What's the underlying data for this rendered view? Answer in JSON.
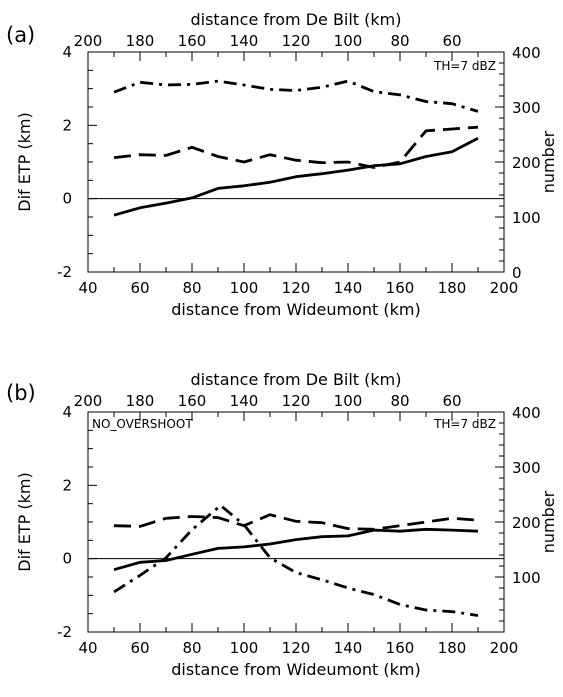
{
  "chart_data": [
    {
      "type": "line",
      "panel_label": "(a)",
      "annotations": [
        "TH=7 dBZ"
      ],
      "xlabel": "distance from Wideumont (km)",
      "x2label": "distance from De Bilt (km)",
      "ylabel": "Dif ETP (km)",
      "y2label": "number",
      "xlim": [
        40,
        200
      ],
      "ylim": [
        -2,
        4
      ],
      "y2lim": [
        0,
        400
      ],
      "x2lim": [
        200,
        40
      ],
      "xticks": [
        40,
        60,
        80,
        100,
        120,
        140,
        160,
        180,
        200
      ],
      "yticks": [
        -2,
        0,
        2,
        4
      ],
      "y2ticks": [
        0,
        100,
        200,
        300,
        400
      ],
      "x2ticks": [
        200,
        180,
        160,
        140,
        120,
        100,
        80,
        60
      ],
      "zero_line": true,
      "grid": false,
      "x": [
        50,
        60,
        70,
        80,
        90,
        100,
        110,
        120,
        130,
        140,
        150,
        160,
        170,
        180,
        190
      ],
      "series": [
        {
          "axis": "left",
          "dash": "solid",
          "values": [
            -0.45,
            -0.25,
            -0.12,
            0.02,
            0.28,
            0.35,
            0.45,
            0.6,
            0.68,
            0.78,
            0.9,
            0.95,
            1.15,
            1.28,
            1.65
          ]
        },
        {
          "axis": "left",
          "dash": "dash",
          "values": [
            1.12,
            1.2,
            1.18,
            1.4,
            1.15,
            1.0,
            1.2,
            1.05,
            0.98,
            1.0,
            0.85,
            1.0,
            1.85,
            1.9,
            1.95
          ]
        },
        {
          "axis": "right",
          "dash": "dashdot",
          "values": [
            327,
            345,
            340,
            341,
            347,
            340,
            332,
            330,
            336,
            347,
            328,
            322,
            310,
            306,
            292
          ]
        }
      ]
    },
    {
      "type": "line",
      "panel_label": "(b)",
      "annotations": [
        "NO_OVERSHOOT",
        "TH=7 dBZ"
      ],
      "xlabel": "distance from Wideumont (km)",
      "x2label": "distance from De Bilt (km)",
      "ylabel": "Dif ETP (km)",
      "y2label": "number",
      "xlim": [
        40,
        200
      ],
      "ylim": [
        -2,
        4
      ],
      "y2lim": [
        0,
        400
      ],
      "x2lim": [
        200,
        40
      ],
      "xticks": [
        40,
        60,
        80,
        100,
        120,
        140,
        160,
        180,
        200
      ],
      "yticks": [
        -2,
        0,
        2,
        4
      ],
      "y2ticks": [
        100,
        200,
        300,
        400
      ],
      "x2ticks": [
        200,
        180,
        160,
        140,
        120,
        100,
        80,
        60
      ],
      "zero_line": true,
      "grid": false,
      "x": [
        50,
        60,
        70,
        80,
        90,
        100,
        110,
        120,
        130,
        140,
        150,
        160,
        170,
        180,
        190
      ],
      "series": [
        {
          "axis": "left",
          "dash": "solid",
          "values": [
            -0.3,
            -0.1,
            -0.05,
            0.12,
            0.28,
            0.32,
            0.4,
            0.52,
            0.6,
            0.62,
            0.78,
            0.75,
            0.8,
            0.78,
            0.75
          ]
        },
        {
          "axis": "left",
          "dash": "dash",
          "values": [
            0.9,
            0.88,
            1.1,
            1.15,
            1.12,
            0.9,
            1.2,
            1.02,
            0.98,
            0.82,
            0.8,
            0.9,
            1.0,
            1.1,
            1.05
          ]
        },
        {
          "axis": "right",
          "dash": "dashdot",
          "x": [
            50,
            60,
            70,
            80,
            91,
            100,
            110,
            120,
            130,
            140,
            150,
            160,
            170,
            180,
            190
          ],
          "values": [
            73,
            103,
            135,
            186,
            230,
            195,
            135,
            108,
            95,
            80,
            68,
            50,
            40,
            37,
            30
          ]
        }
      ]
    }
  ]
}
